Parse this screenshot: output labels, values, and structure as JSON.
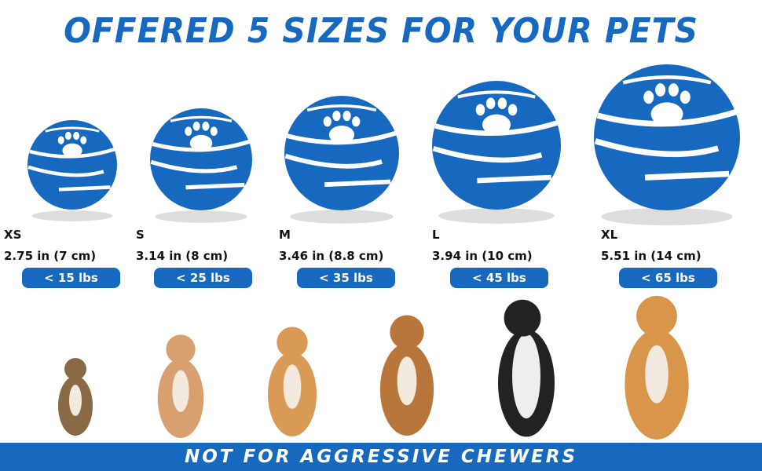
{
  "title": "OFFERED 5 SIZES FOR YOUR PETS",
  "brand_color": "#1769c0",
  "sizes": [
    {
      "size": "XS",
      "dimension": "2.75 in (7 cm)",
      "weight": "< 15 lbs",
      "dog": "yorkshire-terrier"
    },
    {
      "size": "S",
      "dimension": "3.14 in (8 cm)",
      "weight": "< 25 lbs",
      "dog": "chihuahua"
    },
    {
      "size": "M",
      "dimension": "3.46 in (8.8 cm)",
      "weight": "< 35 lbs",
      "dog": "corgi"
    },
    {
      "size": "L",
      "dimension": "3.94 in (10 cm)",
      "weight": "< 45 lbs",
      "dog": "beagle"
    },
    {
      "size": "XL",
      "dimension": "5.51 in (14 cm)",
      "weight": "< 65 lbs",
      "dog": "golden-retriever"
    }
  ],
  "footer": "NOT FOR AGGRESSIVE CHEWERS"
}
